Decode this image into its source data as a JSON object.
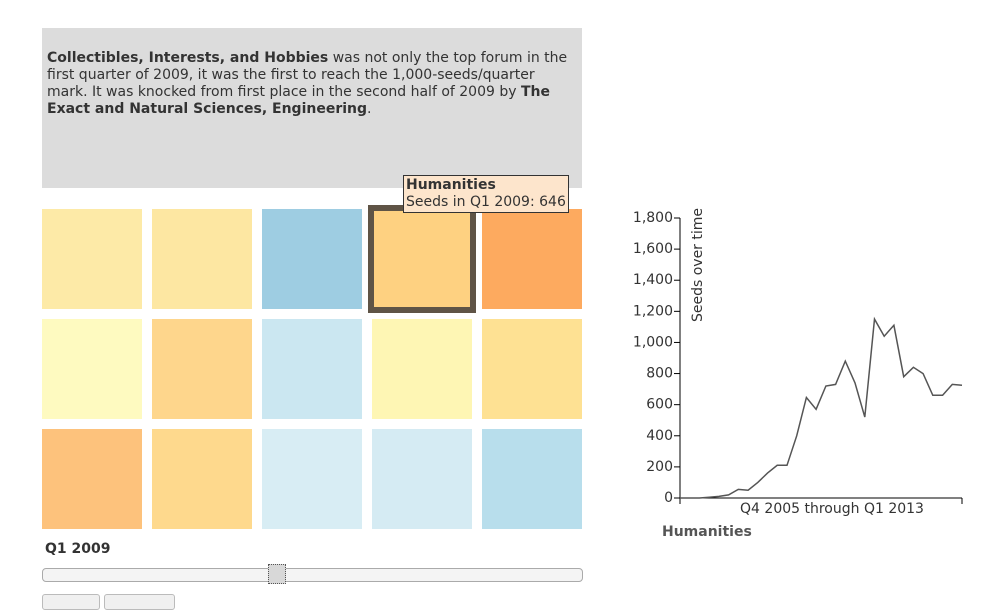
{
  "description": [
    {
      "text": "Collectibles, Interests, and Hobbies",
      "bold": true
    },
    {
      "text": " was not only the top forum in the first quarter of 2009, it was the first to reach the 1,000-seeds/quarter mark. It was knocked from first place in the second half of 2009 by ",
      "bold": false
    },
    {
      "text": "The Exact and Natural Sciences, Engineering",
      "bold": true
    },
    {
      "text": ".",
      "bold": false
    }
  ],
  "heatmap": {
    "cells": [
      [
        "#fdeaa7",
        "#fde7a2",
        "#9ecde2",
        "#fed181",
        "#fdaa5f"
      ],
      [
        "#fefac0",
        "#fed68c",
        "#cbe7f1",
        "#fef6b4",
        "#fee193"
      ],
      [
        "#fdc27c",
        "#fed98d",
        "#d8edf4",
        "#d5ebf3",
        "#b8deec"
      ]
    ]
  },
  "tooltip": {
    "title": "Humanities",
    "text": "Seeds in Q1 2009: 646"
  },
  "period_label": "Q1 2009",
  "chart_data": {
    "type": "line",
    "y_label": "Seeds over time",
    "x_label": "Q4 2005 through Q1 2013",
    "subject": "Humanities",
    "color": "#555555",
    "values": [
      0,
      0,
      0,
      5,
      10,
      20,
      55,
      50,
      100,
      160,
      210,
      210,
      400,
      646,
      570,
      720,
      730,
      880,
      740,
      520,
      1150,
      1040,
      1110,
      780,
      840,
      800,
      660,
      660,
      730,
      725
    ],
    "ylim": [
      0,
      1800
    ],
    "yticks": [
      0,
      200,
      400,
      600,
      800,
      {
        "value": 1000,
        "label": "1,000"
      },
      {
        "value": 1200,
        "label": "1,200"
      },
      {
        "value": 1400,
        "label": "1,400"
      },
      {
        "value": 1600,
        "label": "1,600"
      },
      {
        "value": 1800,
        "label": "1,800"
      }
    ]
  }
}
